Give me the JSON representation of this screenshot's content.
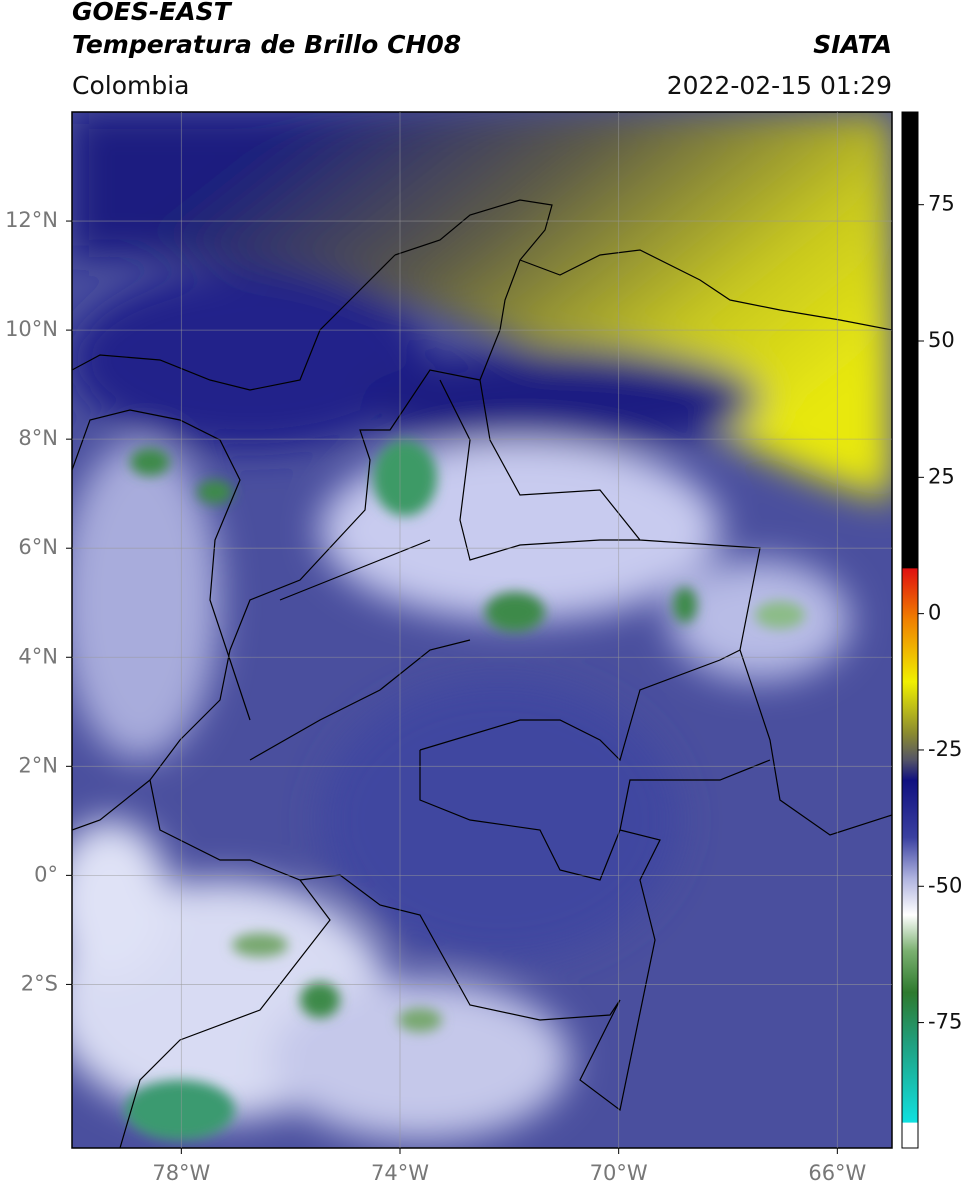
{
  "header": {
    "title": "GOES-EAST",
    "subtitle": "Temperatura de Brillo CH08",
    "source": "SIATA",
    "region": "Colombia",
    "datetime": "2022-02-15 01:29"
  },
  "map": {
    "lonlim": [
      -80,
      -65
    ],
    "latlim": [
      -5,
      14
    ],
    "lonticks": [
      {
        "value": -78,
        "label": "78°W"
      },
      {
        "value": -74,
        "label": "74°W"
      },
      {
        "value": -70,
        "label": "70°W"
      },
      {
        "value": -66,
        "label": "66°W"
      }
    ],
    "latticks": [
      {
        "value": 12,
        "label": "12°N"
      },
      {
        "value": 10,
        "label": "10°N"
      },
      {
        "value": 8,
        "label": "8°N"
      },
      {
        "value": 6,
        "label": "6°N"
      },
      {
        "value": 4,
        "label": "4°N"
      },
      {
        "value": 2,
        "label": "2°N"
      },
      {
        "value": 0,
        "label": "0°"
      },
      {
        "value": -2,
        "label": "2°S"
      }
    ]
  },
  "colorbar": {
    "lim": [
      -98,
      92
    ],
    "ticks": [
      75,
      50,
      25,
      0,
      -25,
      -50,
      -75
    ]
  }
}
